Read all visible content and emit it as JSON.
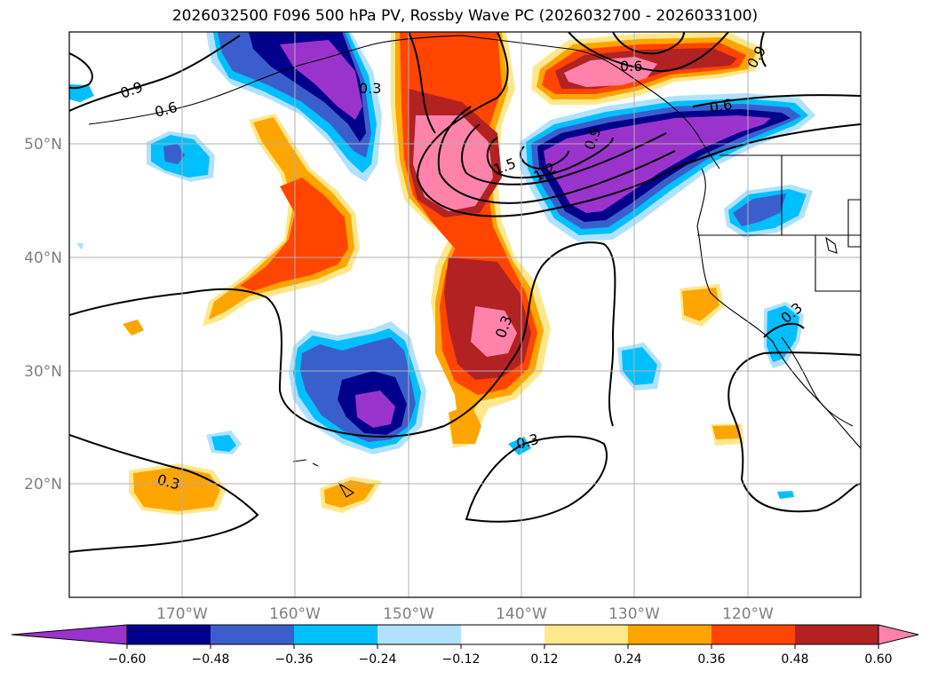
{
  "title": "2026032500 F096 500 hPa PV, Rossby Wave PC (2026032700 - 2026033100)",
  "axes": {
    "lon_labels": [
      "170°W",
      "160°W",
      "150°W",
      "140°W",
      "130°W",
      "120°W"
    ],
    "lat_labels": [
      "50°N",
      "40°N",
      "30°N",
      "20°N"
    ]
  },
  "colorbar": {
    "tick_labels": [
      "−0.60",
      "−0.48",
      "−0.36",
      "−0.24",
      "−0.12",
      "0.12",
      "0.24",
      "0.36",
      "0.48",
      "0.60"
    ],
    "colors": [
      "#9a33cc",
      "#00008b",
      "#3a5fcd",
      "#00bfff",
      "#b0e2ff",
      "#ffffff",
      "#ffe88c",
      "#ffa500",
      "#ff4500",
      "#b22222",
      "#ff82ab"
    ]
  },
  "contour_labels": [
    "0.9",
    "0.6",
    "0.3",
    "0.6",
    "0.9",
    "0.6",
    "1.5",
    "1.2",
    "0.9",
    "0.3",
    "0.3",
    "0.3",
    "0.3"
  ]
}
